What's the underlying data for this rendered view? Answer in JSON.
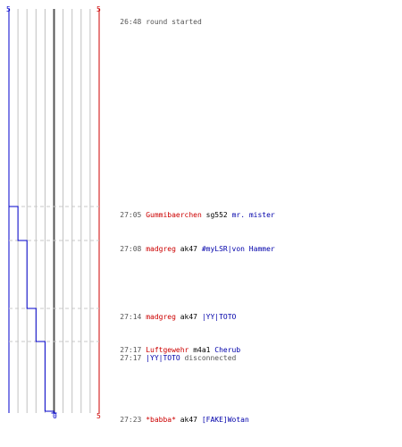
{
  "scale": {
    "left_top": "5",
    "right_top": "5",
    "center_bottom": "0",
    "right_bottom": "5"
  },
  "colors": {
    "team_blue": "#0000cc",
    "team_red": "#cc0000",
    "grid": "#c0c0c0",
    "center": "#555555",
    "guide": "#c8c8c8"
  },
  "chart_data": {
    "type": "line",
    "x_unit": "mm:ss",
    "y_range": [
      -5,
      5
    ],
    "series": [
      {
        "points": [
          {
            "time": "26:48",
            "value": -5
          },
          {
            "time": "27:05",
            "value": -4
          },
          {
            "time": "27:08",
            "value": -3
          },
          {
            "time": "27:14",
            "value": -2
          },
          {
            "time": "27:17",
            "value": -1
          },
          {
            "time": "27:23",
            "value": 0
          }
        ]
      }
    ]
  },
  "events": [
    {
      "time": "26:48",
      "type": "system",
      "text": "round started"
    },
    {
      "time": "27:05",
      "type": "kill",
      "killer": "Gummibaerchen",
      "weapon": "sg552",
      "victim": "mr. mister"
    },
    {
      "time": "27:08",
      "type": "kill",
      "killer": "madgreg",
      "weapon": "ak47",
      "victim": "#myLSR|von Hammer"
    },
    {
      "time": "27:14",
      "type": "kill",
      "killer": "madgreg",
      "weapon": "ak47",
      "victim": "|YY|TOTO"
    },
    {
      "time": "27:17",
      "type": "kill",
      "killer": "Luftgewehr",
      "weapon": "m4a1",
      "victim": "Cherub"
    },
    {
      "time": "27:17",
      "type": "disconnect",
      "player": "|YY|TOTO",
      "text": "disconnected"
    },
    {
      "time": "27:23",
      "type": "kill",
      "killer": "*babba*",
      "weapon": "ak47",
      "victim": "[FAKE]Wotan"
    }
  ]
}
